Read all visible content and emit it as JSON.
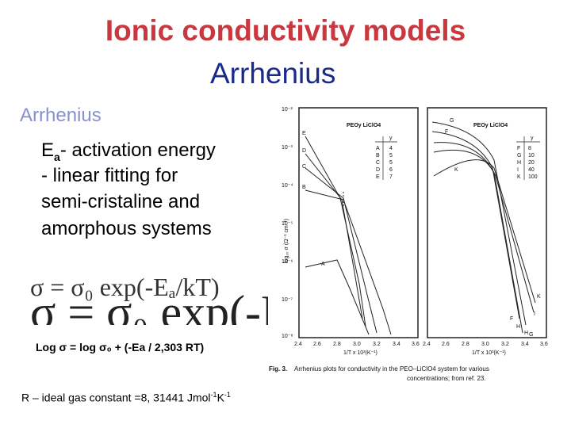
{
  "title": "Ionic conductivity models",
  "subtitle": "Arrhenius",
  "section": "Arrhenius",
  "bullets": {
    "ea_symbol": "E",
    "ea_sub": "a",
    "ea_text": "- activation energy",
    "line2": "-  linear fitting for",
    "line3": "semi-cristaline and",
    "line4": "amorphous systems"
  },
  "equation": {
    "small": "σ = σ₀ exp(-Eₐ/kT)",
    "large": "σ = σ₀ exp(-E"
  },
  "log_equation": "Log σ = log σ₀ + (-Ea / 2,303 RT)",
  "r_constant": {
    "text": "R – ideal gas constant =8, 31441 Jmol",
    "exp1": "-1",
    "mid": "K",
    "exp2": "-1"
  },
  "figure": {
    "left_panel_label": "PEOy LiClO4",
    "right_panel_label": "PEOy LiClO4",
    "y_axis_label": "log₁₀ σ (Ω⁻¹ cm⁻¹)",
    "x_axis_label": "1/T x 10³(K⁻¹)",
    "y_ticks": [
      "10⁻²",
      "10⁻³",
      "10⁻⁴",
      "10⁻⁵",
      "10⁻⁶",
      "10⁻⁷",
      "10⁻⁸"
    ],
    "x_ticks": [
      "2.4",
      "2.6",
      "2.8",
      "3.0",
      "3.2",
      "3.4",
      "3.6"
    ],
    "legend_left": {
      "header": "y",
      "rows": [
        [
          "A",
          "4"
        ],
        [
          "B",
          "5"
        ],
        [
          "C",
          "5"
        ],
        [
          "D",
          "6"
        ],
        [
          "E",
          "7"
        ]
      ]
    },
    "legend_right": {
      "header": "y",
      "rows": [
        [
          "F",
          "8"
        ],
        [
          "G",
          "10"
        ],
        [
          "H",
          "20"
        ],
        [
          "I",
          "40"
        ],
        [
          "K",
          "100"
        ]
      ]
    },
    "curve_labels_left": [
      "E",
      "D",
      "C",
      "B",
      "A"
    ],
    "curve_labels_right": [
      "G",
      "F",
      "K",
      "I",
      "H",
      "K",
      "F",
      "H",
      "G"
    ],
    "caption_num": "Fig. 3.",
    "caption_text": "Arrhenius plots for conductivity in the PEO–LiClO4 system for various",
    "caption_text2": "concentrations; from ref. 23."
  }
}
